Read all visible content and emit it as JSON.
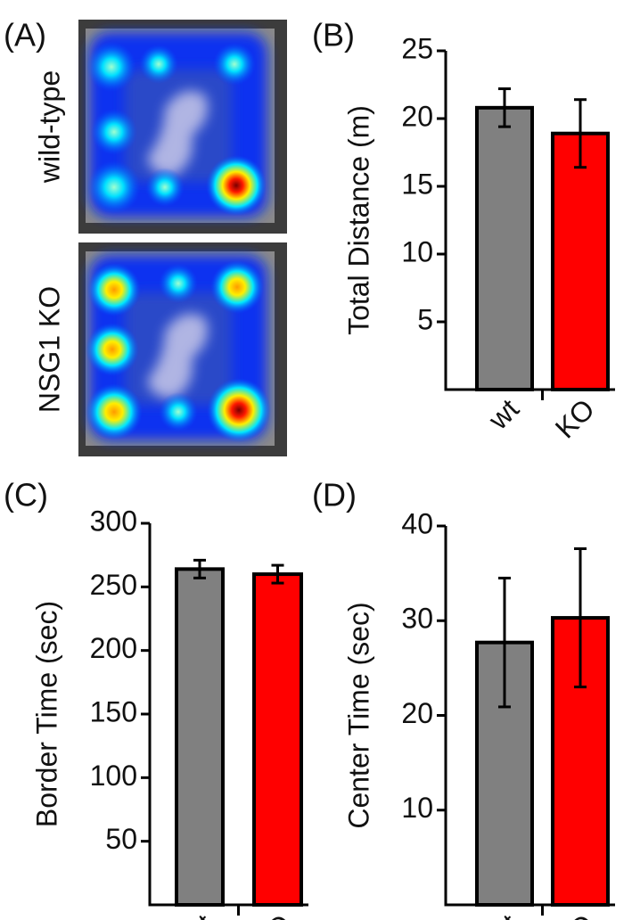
{
  "panel_a": {
    "label": "(A)",
    "rows": [
      "wild-type",
      "NSG1 KO"
    ]
  },
  "chart_data": [
    {
      "type": "bar",
      "panel": "(B)",
      "ylabel": "Total Distance (m)",
      "categories": [
        "wt",
        "KO"
      ],
      "values": [
        20.8,
        18.9
      ],
      "errors": [
        1.4,
        2.5
      ],
      "colors": [
        "#808080",
        "#ff0000"
      ],
      "ylim": [
        0,
        25
      ],
      "yticks": [
        5,
        10,
        15,
        20,
        25
      ]
    },
    {
      "type": "bar",
      "panel": "(C)",
      "ylabel": "Border Time (sec)",
      "categories": [
        "wt",
        "KO"
      ],
      "values": [
        264,
        260
      ],
      "errors": [
        7,
        7
      ],
      "colors": [
        "#808080",
        "#ff0000"
      ],
      "ylim": [
        0,
        300
      ],
      "yticks": [
        50,
        100,
        150,
        200,
        250,
        300
      ]
    },
    {
      "type": "bar",
      "panel": "(D)",
      "ylabel": "Center Time (sec)",
      "categories": [
        "wt",
        "KO"
      ],
      "values": [
        27.7,
        30.3
      ],
      "errors": [
        6.8,
        7.3
      ],
      "colors": [
        "#808080",
        "#ff0000"
      ],
      "ylim": [
        0,
        40
      ],
      "yticks": [
        10,
        20,
        30,
        40
      ]
    }
  ]
}
